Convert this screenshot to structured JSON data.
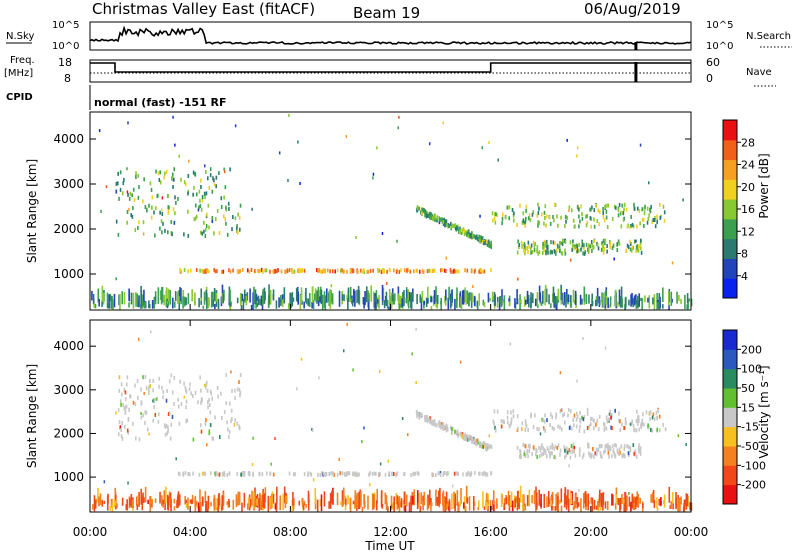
{
  "header": {
    "station": "Christmas Valley East (fitACF)",
    "beam": "Beam 19",
    "date": "06/Aug/2019"
  },
  "top_panels": {
    "nsky_label": "N.Sky",
    "nsky_ticks": [
      "10^5",
      "10^0"
    ],
    "nsearch_label": "N.Search",
    "nsearch_ticks": [
      "10^5",
      "10^0"
    ],
    "freq_label_1": "Freq.",
    "freq_label_2": "[MHz]",
    "freq_ticks": [
      "18",
      "8"
    ],
    "nave_label": "Nave",
    "nave_ticks": [
      "60",
      "0"
    ],
    "cpid_label": "CPID",
    "cpid_text": "normal (fast) -151 RF"
  },
  "chart_data": [
    {
      "type": "heatmap",
      "name": "power",
      "ylabel": "Slant Range [km]",
      "xlabel": "Time UT",
      "ylim": [
        200,
        4600
      ],
      "xlim": [
        0,
        24
      ],
      "yticks": [
        "4000",
        "3000",
        "2000",
        "1000"
      ],
      "yticks_values": [
        4000,
        3000,
        2000,
        1000
      ],
      "colorbar_label": "Power [dB]",
      "colorbar_ticks": [
        "28",
        "24",
        "20",
        "16",
        "12",
        "8",
        "4"
      ],
      "colorbar_range": [
        0,
        30
      ],
      "colorbar_colors": [
        "#0a22ee",
        "#2244bb",
        "#2a7a70",
        "#3aa050",
        "#88c830",
        "#f0d020",
        "#f5a020",
        "#f06018",
        "#e81010"
      ],
      "features": [
        {
          "label": "dawn-side scatter",
          "t": [
            1.0,
            6.0
          ],
          "range": [
            1800,
            3300
          ],
          "level": 12
        },
        {
          "label": "evening band upper",
          "t": [
            16.0,
            23.0
          ],
          "range": [
            2000,
            2500
          ],
          "level": 14
        },
        {
          "label": "evening band lower",
          "t": [
            17.0,
            22.0
          ],
          "range": [
            1400,
            1700
          ],
          "level": 13
        },
        {
          "label": "descending trace",
          "t": [
            13.0,
            16.0
          ],
          "range": [
            1600,
            2400
          ],
          "level": 12
        },
        {
          "label": "1000 km echoes",
          "t": [
            3.5,
            16.0
          ],
          "range": [
            1000,
            1050
          ],
          "level": 22
        },
        {
          "label": "ground scatter floor",
          "t": [
            0.0,
            24.0
          ],
          "range": [
            200,
            420
          ],
          "level": 10
        }
      ]
    },
    {
      "type": "heatmap",
      "name": "velocity",
      "ylabel": "Slant Range [km]",
      "xlabel": "Time UT",
      "ylim": [
        200,
        4600
      ],
      "xlim": [
        0,
        24
      ],
      "yticks": [
        "4000",
        "3000",
        "2000",
        "1000"
      ],
      "yticks_values": [
        4000,
        3000,
        2000,
        1000
      ],
      "colorbar_label": "Velocity [m s⁻¹]",
      "colorbar_ticks": [
        "200",
        "100",
        "50",
        "15",
        "-15",
        "-50",
        "-100",
        "-200"
      ],
      "colorbar_range": [
        -250,
        250
      ],
      "colorbar_colors": [
        "#e81010",
        "#f04818",
        "#f58020",
        "#f5c020",
        "#c8c8c8",
        "#60c030",
        "#2a8a60",
        "#2a5ac0",
        "#1a2ad0"
      ],
      "features": [
        {
          "label": "dawn-side scatter",
          "t": [
            1.0,
            6.0
          ],
          "range": [
            1800,
            3300
          ],
          "level": 0
        },
        {
          "label": "evening band upper",
          "t": [
            16.0,
            23.0
          ],
          "range": [
            2000,
            2500
          ],
          "level": 0
        },
        {
          "label": "evening band lower",
          "t": [
            17.0,
            22.0
          ],
          "range": [
            1400,
            1700
          ],
          "level": 0
        },
        {
          "label": "descending trace",
          "t": [
            13.0,
            16.0
          ],
          "range": [
            1600,
            2400
          ],
          "level": 0
        },
        {
          "label": "1000 km echoes",
          "t": [
            3.5,
            16.0
          ],
          "range": [
            1000,
            1050
          ],
          "level": 0
        },
        {
          "label": "ground scatter floor",
          "t": [
            0.0,
            24.0
          ],
          "range": [
            200,
            420
          ],
          "level": -80
        }
      ]
    }
  ],
  "time_axis": {
    "ticks": [
      "00:00",
      "04:00",
      "08:00",
      "12:00",
      "16:00",
      "20:00",
      "00:00"
    ],
    "tick_hours": [
      0,
      4,
      8,
      12,
      16,
      20,
      24
    ],
    "label": "Time UT"
  }
}
